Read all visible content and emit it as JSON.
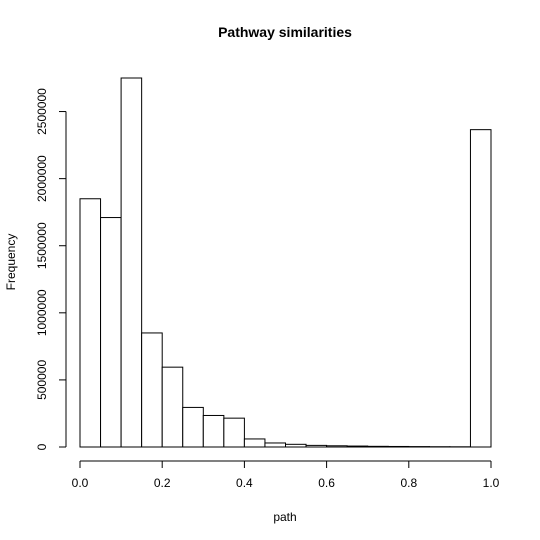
{
  "chart_data": {
    "type": "bar",
    "title": "Pathway similarities",
    "xlabel": "path",
    "ylabel": "Frequency",
    "xlim": [
      0,
      1
    ],
    "ylim": [
      0,
      2750000
    ],
    "bin_width": 0.05,
    "bins": [
      {
        "x0": 0.0,
        "x1": 0.05,
        "value": 1850000
      },
      {
        "x0": 0.05,
        "x1": 0.1,
        "value": 1710000
      },
      {
        "x0": 0.1,
        "x1": 0.15,
        "value": 2750000
      },
      {
        "x0": 0.15,
        "x1": 0.2,
        "value": 850000
      },
      {
        "x0": 0.2,
        "x1": 0.25,
        "value": 595000
      },
      {
        "x0": 0.25,
        "x1": 0.3,
        "value": 295000
      },
      {
        "x0": 0.3,
        "x1": 0.35,
        "value": 235000
      },
      {
        "x0": 0.35,
        "x1": 0.4,
        "value": 215000
      },
      {
        "x0": 0.4,
        "x1": 0.45,
        "value": 60000
      },
      {
        "x0": 0.45,
        "x1": 0.5,
        "value": 30000
      },
      {
        "x0": 0.5,
        "x1": 0.55,
        "value": 20000
      },
      {
        "x0": 0.55,
        "x1": 0.6,
        "value": 12000
      },
      {
        "x0": 0.6,
        "x1": 0.65,
        "value": 9000
      },
      {
        "x0": 0.65,
        "x1": 0.7,
        "value": 7000
      },
      {
        "x0": 0.7,
        "x1": 0.75,
        "value": 5000
      },
      {
        "x0": 0.75,
        "x1": 0.8,
        "value": 4000
      },
      {
        "x0": 0.8,
        "x1": 0.85,
        "value": 3000
      },
      {
        "x0": 0.85,
        "x1": 0.9,
        "value": 2000
      },
      {
        "x0": 0.9,
        "x1": 0.95,
        "value": 1500
      },
      {
        "x0": 0.95,
        "x1": 1.0,
        "value": 2365000
      }
    ],
    "x_ticks": [
      {
        "value": 0.0,
        "label": "0.0"
      },
      {
        "value": 0.2,
        "label": "0.2"
      },
      {
        "value": 0.4,
        "label": "0.4"
      },
      {
        "value": 0.6,
        "label": "0.6"
      },
      {
        "value": 0.8,
        "label": "0.8"
      },
      {
        "value": 1.0,
        "label": "1.0"
      }
    ],
    "y_ticks": [
      {
        "value": 0,
        "label": "0"
      },
      {
        "value": 500000,
        "label": "500000"
      },
      {
        "value": 1000000,
        "label": "1000000"
      },
      {
        "value": 1500000,
        "label": "1500000"
      },
      {
        "value": 2000000,
        "label": "2000000"
      },
      {
        "value": 2500000,
        "label": "2500000"
      }
    ],
    "grid": false,
    "colors": {
      "bar_fill": "#ffffff",
      "bar_stroke": "#000000",
      "axis": "#000000"
    }
  }
}
